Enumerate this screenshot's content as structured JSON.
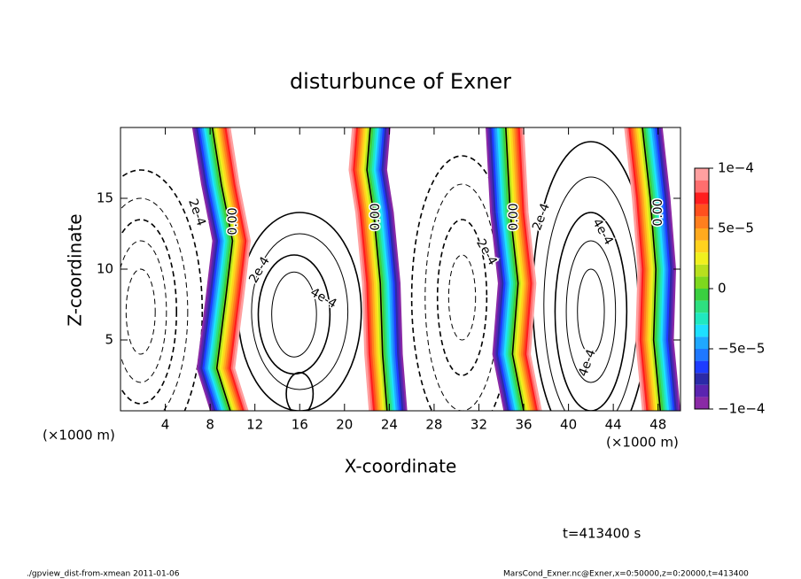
{
  "chart_data": {
    "type": "contour",
    "title": "disturbunce of Exner",
    "xlabel": "X-coordinate",
    "ylabel": "Z-coordinate",
    "x_unit_label": "(×1000 m)",
    "y_unit_label": "(×1000 m)",
    "xlim": [
      0,
      50
    ],
    "xticks": [
      4,
      8,
      12,
      16,
      20,
      24,
      28,
      32,
      36,
      40,
      44,
      48
    ],
    "ylim": [
      0,
      20
    ],
    "yticks": [
      5,
      10,
      15
    ],
    "clim": [
      -0.0001,
      0.0001
    ],
    "cticks": [
      {
        "value": 0.0001,
        "label": "1e−4"
      },
      {
        "value": 5e-05,
        "label": "5e−5"
      },
      0,
      {
        "value": -5e-05,
        "label": "−5e−5"
      },
      {
        "value": -0.0001,
        "label": "−1e−4"
      }
    ],
    "levels": [
      -0.0001,
      -9e-05,
      -8e-05,
      -7e-05,
      -6e-05,
      -5e-05,
      -4e-05,
      -3e-05,
      -2e-05,
      -1e-05,
      0,
      1e-05,
      2e-05,
      3e-05,
      4e-05,
      5e-05,
      6e-05,
      7e-05,
      8e-05,
      9e-05,
      0.0001
    ],
    "colors": [
      "#8a2aa6",
      "#5a24b0",
      "#2b2aa8",
      "#1e3cff",
      "#1f78ff",
      "#1fa8ff",
      "#1ee0ff",
      "#20e8c0",
      "#2ee080",
      "#3ad040",
      "#7ed81e",
      "#b8e01e",
      "#f0f01e",
      "#ffd21e",
      "#ffaa1e",
      "#ff7f1e",
      "#ff501e",
      "#ff1e1e",
      "#ff6e6e",
      "#ffa0a0"
    ],
    "contour_labels": [
      "2e-4",
      "0.00",
      "2e-4",
      "4e-4",
      "0.00",
      "2e-4",
      "0.00",
      "2e-4",
      "4e-4",
      "4e-4",
      "0.00"
    ],
    "time_label": "t=413400 s",
    "footer_left": "./gpview_dist-from-xmean  2011-01-06",
    "footer_right": "MarsCond_Exner.nc@Exner,x=0:50000,z=0:20000,t=413400"
  }
}
